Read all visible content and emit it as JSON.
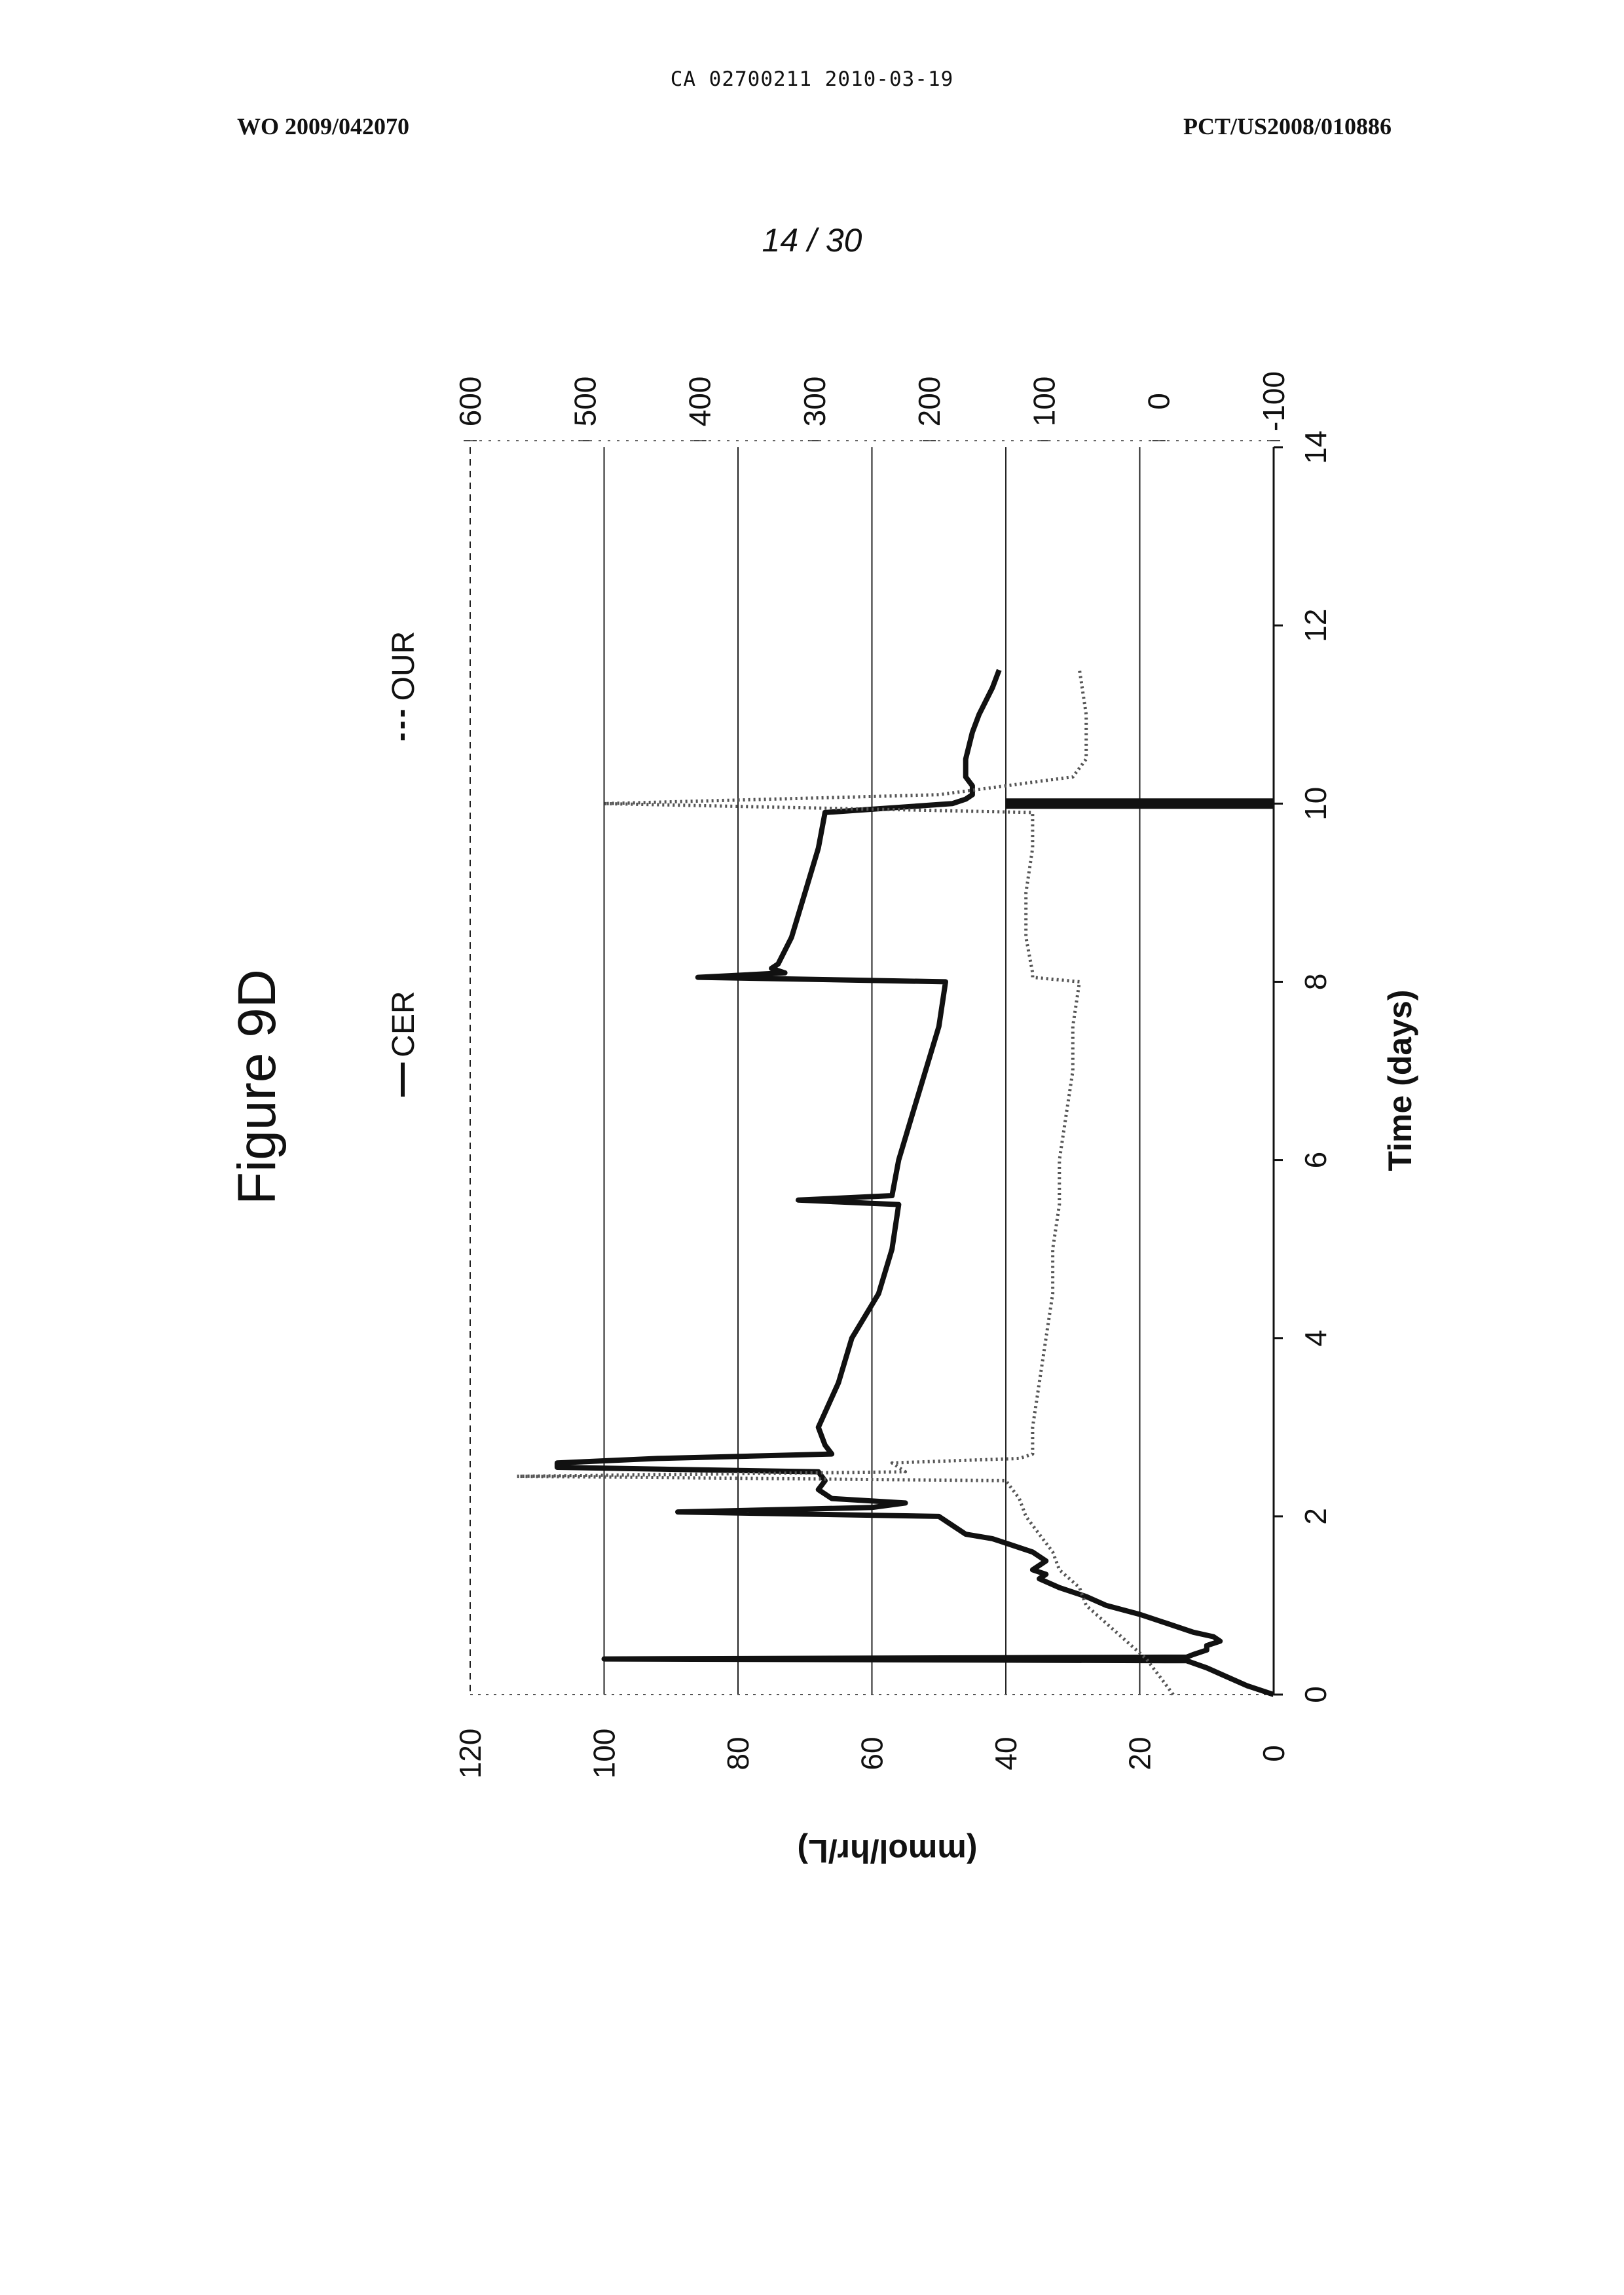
{
  "header": {
    "ca_line": "CA 02700211 2010-03-19",
    "publication_number": "WO 2009/042070",
    "application_number": "PCT/US2008/010886",
    "sheet": "14 / 30"
  },
  "chart_data": {
    "type": "line",
    "title": "Figure 9D",
    "orientation": "rotated 90 degrees counter-clockwise on the page",
    "xlabel": "Time (days)",
    "ylabel": "(mmol/hr/L)",
    "xlim": [
      0,
      14
    ],
    "ylim": [
      0,
      120
    ],
    "y2lim": [
      -100,
      600
    ],
    "x_ticks": [
      "0",
      "2",
      "4",
      "6",
      "8",
      "10",
      "12",
      "14"
    ],
    "y_ticks": [
      "0",
      "20",
      "40",
      "60",
      "80",
      "100",
      "120"
    ],
    "y2_ticks": [
      "-100",
      "0",
      "100",
      "200",
      "300",
      "400",
      "500",
      "600"
    ],
    "grid": true,
    "legend": [
      "CER",
      "OUR"
    ],
    "series": [
      {
        "name": "CER",
        "style": "solid",
        "color": "#111111",
        "x": [
          0,
          0.1,
          0.2,
          0.3,
          0.38,
          0.4,
          0.42,
          0.45,
          0.5,
          0.55,
          0.6,
          0.65,
          0.7,
          0.8,
          0.9,
          1.0,
          1.1,
          1.2,
          1.3,
          1.35,
          1.4,
          1.5,
          1.6,
          1.7,
          1.75,
          1.8,
          1.9,
          2.0,
          2.05,
          2.1,
          2.15,
          2.2,
          2.3,
          2.4,
          2.5,
          2.55,
          2.6,
          2.65,
          2.7,
          2.8,
          3.0,
          3.5,
          4.0,
          4.5,
          5.0,
          5.5,
          5.55,
          5.6,
          6.0,
          6.5,
          7.0,
          7.5,
          8.0,
          8.05,
          8.1,
          8.15,
          8.2,
          8.5,
          9.0,
          9.5,
          9.9,
          10.0,
          10.05,
          10.1,
          10.2,
          10.3,
          10.5,
          10.8,
          11.0,
          11.3,
          11.5
        ],
        "y": [
          0,
          4,
          7,
          10,
          13,
          100,
          13,
          12,
          10,
          10,
          8,
          9,
          12,
          16,
          20,
          25,
          28,
          32,
          35,
          34,
          36,
          34,
          36,
          40,
          42,
          46,
          48,
          50,
          89,
          60,
          55,
          66,
          68,
          67,
          68,
          107,
          107,
          92,
          66,
          67,
          68,
          65,
          63,
          59,
          57,
          56,
          71,
          57,
          56,
          54,
          52,
          50,
          49,
          86,
          73,
          75,
          74,
          72,
          70,
          68,
          67,
          48,
          46,
          45,
          45,
          46,
          46,
          45,
          44,
          42,
          41
        ]
      },
      {
        "name": "OUR",
        "style": "dotted",
        "color": "#555555",
        "x": [
          0,
          0.2,
          0.4,
          0.6,
          0.8,
          1.0,
          1.2,
          1.4,
          1.6,
          1.8,
          2.0,
          2.2,
          2.4,
          2.45,
          2.5,
          2.6,
          2.65,
          2.7,
          2.8,
          3.0,
          3.5,
          4.0,
          4.5,
          5.0,
          5.5,
          6.0,
          6.5,
          7.0,
          7.5,
          8.0,
          8.05,
          8.1,
          8.5,
          9.0,
          9.5,
          9.9,
          10.0,
          10.1,
          10.3,
          10.5,
          11.0,
          11.5
        ],
        "y": [
          15,
          17,
          19,
          22,
          25,
          28,
          29,
          32,
          33,
          35,
          37,
          38,
          40,
          113,
          55,
          57,
          38,
          36,
          36,
          36,
          35,
          34,
          33,
          33,
          32,
          32,
          31,
          30,
          30,
          29,
          36,
          36,
          37,
          37,
          36,
          36,
          100,
          50,
          30,
          28,
          28,
          29
        ]
      }
    ],
    "annotations": [
      {
        "series": "OUR",
        "x": 10.0,
        "note": "dense vertical band from 0 to about 40 near day 10"
      }
    ]
  }
}
